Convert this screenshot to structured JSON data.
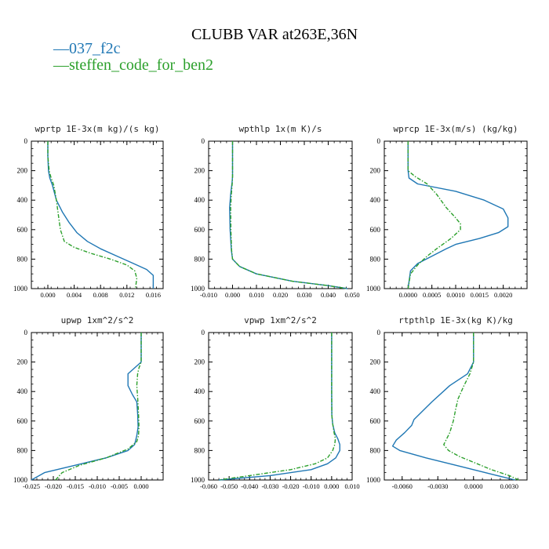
{
  "chart_data": {
    "title": "CLUBB VAR at263E,36N",
    "legend": [
      {
        "name": "037_f2c",
        "color": "#1f77b4",
        "dash": "solid"
      },
      {
        "name": "steffen_code_for_ben2",
        "color": "#2ca02c",
        "dash": "dashdot"
      }
    ],
    "panels": [
      {
        "type": "line",
        "title": "wprtp  1E-3x(m kg)/(s kg)",
        "xlim": [
          -0.0025,
          0.0175
        ],
        "xticks": [
          0.0,
          0.004,
          0.008,
          0.012,
          0.016
        ],
        "xticklabels": [
          "0.000",
          "0.004",
          "0.008",
          "0.012",
          "0.016"
        ],
        "ylim": [
          1000,
          0
        ],
        "yticks": [
          0,
          200,
          400,
          600,
          800,
          1000
        ],
        "series": [
          {
            "name": "037_f2c",
            "x": [
              0.0,
              0.0,
              0.0001,
              0.0003,
              0.0007,
              0.0013,
              0.0022,
              0.0032,
              0.0044,
              0.006,
              0.008,
              0.0105,
              0.013,
              0.015,
              0.016,
              0.016
            ],
            "y": [
              0,
              100,
              200,
              250,
              300,
              400,
              480,
              550,
              620,
              680,
              730,
              780,
              830,
              870,
              910,
              1000
            ]
          },
          {
            "name": "steffen_code_for_ben2",
            "x": [
              0.0,
              0.0,
              0.0002,
              0.0005,
              0.0009,
              0.0013,
              0.0016,
              0.0019,
              0.0025,
              0.004,
              0.0065,
              0.0095,
              0.012,
              0.0132,
              0.0135,
              0.0133
            ],
            "y": [
              0,
              100,
              200,
              250,
              300,
              400,
              500,
              600,
              680,
              720,
              760,
              800,
              840,
              880,
              930,
              1000
            ]
          }
        ]
      },
      {
        "type": "line",
        "title": "wpthlp  1x(m K)/s",
        "xlim": [
          -0.01,
          0.05
        ],
        "xticks": [
          -0.01,
          0.0,
          0.01,
          0.02,
          0.03,
          0.04,
          0.05
        ],
        "xticklabels": [
          "-0.010",
          "0.000",
          "0.010",
          "0.020",
          "0.030",
          "0.040",
          "0.050"
        ],
        "ylim": [
          1000,
          0
        ],
        "yticks": [
          0,
          200,
          400,
          600,
          800,
          1000
        ],
        "series": [
          {
            "name": "037_f2c",
            "x": [
              0.0,
              0.0,
              0.0,
              -0.0002,
              -0.0008,
              -0.0012,
              -0.001,
              -0.0005,
              0.0,
              0.003,
              0.01,
              0.025,
              0.04,
              0.048
            ],
            "y": [
              0,
              200,
              240,
              280,
              360,
              450,
              600,
              740,
              800,
              850,
              900,
              950,
              980,
              1000
            ]
          },
          {
            "name": "steffen_code_for_ben2",
            "x": [
              0.0,
              0.0,
              0.0,
              -0.0001,
              -0.0005,
              -0.0008,
              -0.0007,
              -0.0004,
              0.0,
              0.003,
              0.01,
              0.025,
              0.04,
              0.048
            ],
            "y": [
              0,
              200,
              240,
              280,
              360,
              450,
              600,
              740,
              800,
              850,
              900,
              950,
              980,
              1000
            ]
          }
        ]
      },
      {
        "type": "line",
        "title": "wprcp  1E-3x(m/s) (kg/kg)",
        "xlim": [
          -0.0005,
          0.0025
        ],
        "xticks": [
          0.0,
          0.0005,
          0.001,
          0.0015,
          0.002
        ],
        "xticklabels": [
          "0.0000",
          "0.0005",
          "0.0010",
          "0.0015",
          "0.0020"
        ],
        "ylim": [
          1000,
          0
        ],
        "yticks": [
          0,
          200,
          400,
          600,
          800,
          1000
        ],
        "series": [
          {
            "name": "037_f2c",
            "x": [
              0.0,
              0.0,
              2e-05,
              0.0002,
              0.001,
              0.0016,
              0.002,
              0.0021,
              0.0021,
              0.0019,
              0.0015,
              0.001,
              0.0008,
              0.0005,
              0.0002,
              5e-05,
              0.0
            ],
            "y": [
              0,
              200,
              250,
              290,
              340,
              400,
              460,
              520,
              580,
              620,
              660,
              700,
              730,
              780,
              830,
              880,
              1000
            ]
          },
          {
            "name": "steffen_code_for_ben2",
            "x": [
              0.0,
              0.0,
              0.00015,
              0.0004,
              0.0006,
              0.0008,
              0.001,
              0.0011,
              0.0011,
              0.0009,
              0.0006,
              0.0004,
              0.0002,
              5e-05,
              0.0
            ],
            "y": [
              0,
              200,
              240,
              290,
              360,
              450,
              520,
              560,
              600,
              660,
              730,
              780,
              840,
              900,
              1000
            ]
          }
        ]
      },
      {
        "type": "line",
        "title": "upwp  1xm^2/s^2",
        "xlim": [
          -0.025,
          0.005
        ],
        "xticks": [
          -0.025,
          -0.02,
          -0.015,
          -0.01,
          -0.005,
          0.0
        ],
        "xticklabels": [
          "-0.025",
          "-0.020",
          "-0.015",
          "-0.010",
          "-0.005",
          "0.000"
        ],
        "ylim": [
          1000,
          0
        ],
        "yticks": [
          0,
          200,
          400,
          600,
          800,
          1000
        ],
        "series": [
          {
            "name": "037_f2c",
            "x": [
              0.0,
              0.0,
              -0.0015,
              -0.003,
              -0.003,
              -0.002,
              -0.001,
              -0.0008,
              -0.0007,
              -0.001,
              -0.0015,
              -0.003,
              -0.008,
              -0.015,
              -0.022,
              -0.025
            ],
            "y": [
              0,
              200,
              240,
              280,
              360,
              420,
              470,
              550,
              640,
              700,
              760,
              800,
              850,
              900,
              950,
              1000
            ]
          },
          {
            "name": "steffen_code_for_ben2",
            "x": [
              0.0,
              0.0,
              -0.0005,
              -0.0008,
              -0.001,
              -0.0008,
              -0.0006,
              -0.0005,
              -0.0006,
              -0.001,
              -0.003,
              -0.008,
              -0.014,
              -0.018,
              -0.0195
            ],
            "y": [
              0,
              200,
              240,
              280,
              360,
              440,
              550,
              640,
              700,
              740,
              790,
              850,
              900,
              950,
              1000
            ]
          }
        ]
      },
      {
        "type": "line",
        "title": "vpwp  1xm^2/s^2",
        "xlim": [
          -0.06,
          0.01
        ],
        "xticks": [
          -0.06,
          -0.05,
          -0.04,
          -0.03,
          -0.02,
          -0.01,
          0.0,
          0.01
        ],
        "xticklabels": [
          "-0.060",
          "-0.050",
          "-0.040",
          "-0.030",
          "-0.020",
          "-0.010",
          "0.000",
          "0.010"
        ],
        "ylim": [
          1000,
          0
        ],
        "yticks": [
          0,
          200,
          400,
          600,
          800,
          1000
        ],
        "series": [
          {
            "name": "037_f2c",
            "x": [
              0.0,
              0.0,
              0.0,
              0.0001,
              0.0005,
              0.0015,
              0.003,
              0.004,
              0.004,
              0.002,
              -0.002,
              -0.01,
              -0.03,
              -0.055
            ],
            "y": [
              0,
              200,
              400,
              560,
              620,
              680,
              720,
              760,
              800,
              850,
              890,
              930,
              970,
              1000
            ]
          },
          {
            "name": "steffen_code_for_ben2",
            "x": [
              0.0,
              0.0,
              0.0,
              0.0001,
              0.0005,
              0.0012,
              0.0018,
              0.0015,
              0.0005,
              -0.002,
              -0.008,
              -0.02,
              -0.04,
              -0.055
            ],
            "y": [
              0,
              200,
              400,
              560,
              620,
              680,
              720,
              760,
              800,
              850,
              890,
              930,
              970,
              1000
            ]
          }
        ]
      },
      {
        "type": "line",
        "title": "rtpthlp  1E-3x(kg K)/kg",
        "xlim": [
          -0.0075,
          0.0045
        ],
        "xticks": [
          -0.006,
          -0.003,
          0.0,
          0.003
        ],
        "xticklabels": [
          "-0.0060",
          "-0.0030",
          "0.0000",
          "0.0030"
        ],
        "ylim": [
          1000,
          0
        ],
        "yticks": [
          0,
          200,
          400,
          600,
          800,
          1000
        ],
        "series": [
          {
            "name": "037_f2c",
            "x": [
              0.0,
              0.0,
              -0.0005,
              -0.002,
              -0.0035,
              -0.0045,
              -0.005,
              -0.0052,
              -0.0058,
              -0.0065,
              -0.0068,
              -0.0062,
              -0.004,
              -0.001,
              0.002,
              0.0035
            ],
            "y": [
              0,
              200,
              280,
              360,
              470,
              550,
              590,
              630,
              680,
              730,
              770,
              800,
              850,
              910,
              970,
              1000
            ]
          },
          {
            "name": "steffen_code_for_ben2",
            "x": [
              0.0,
              0.0,
              -0.0003,
              -0.0008,
              -0.0013,
              -0.0015,
              -0.0017,
              -0.002,
              -0.0025,
              -0.0021,
              -0.0012,
              0.0,
              0.0015,
              0.003,
              0.0038
            ],
            "y": [
              0,
              200,
              280,
              360,
              450,
              520,
              600,
              680,
              760,
              800,
              840,
              880,
              930,
              970,
              1000
            ]
          }
        ]
      }
    ]
  }
}
